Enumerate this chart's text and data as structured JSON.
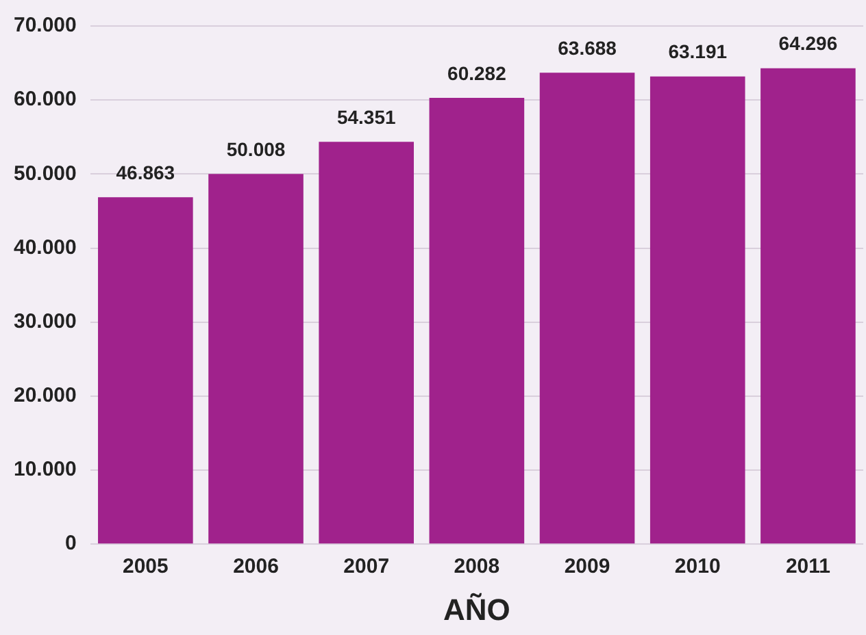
{
  "chart_data": {
    "type": "bar",
    "xlabel": "AÑO",
    "categories": [
      "2005",
      "2006",
      "2007",
      "2008",
      "2009",
      "2010",
      "2011"
    ],
    "values": [
      46863,
      50008,
      54351,
      60282,
      63688,
      63191,
      64296
    ],
    "value_labels": [
      "46.863",
      "50.008",
      "54.351",
      "60.282",
      "63.688",
      "63.191",
      "64.296"
    ],
    "color": "#a0228c",
    "ylim": [
      0,
      70000
    ],
    "yticks": [
      0,
      {
        "value": 10000,
        "label": "10.000"
      },
      {
        "value": 20000,
        "label": "20.000"
      },
      {
        "value": 30000,
        "label": "30.000"
      },
      {
        "value": 40000,
        "label": "40.000"
      },
      {
        "value": 50000,
        "label": "50.000"
      },
      {
        "value": 60000,
        "label": "60.000"
      },
      {
        "value": 70000,
        "label": "70.000"
      }
    ],
    "grid": "y",
    "legend": false
  }
}
